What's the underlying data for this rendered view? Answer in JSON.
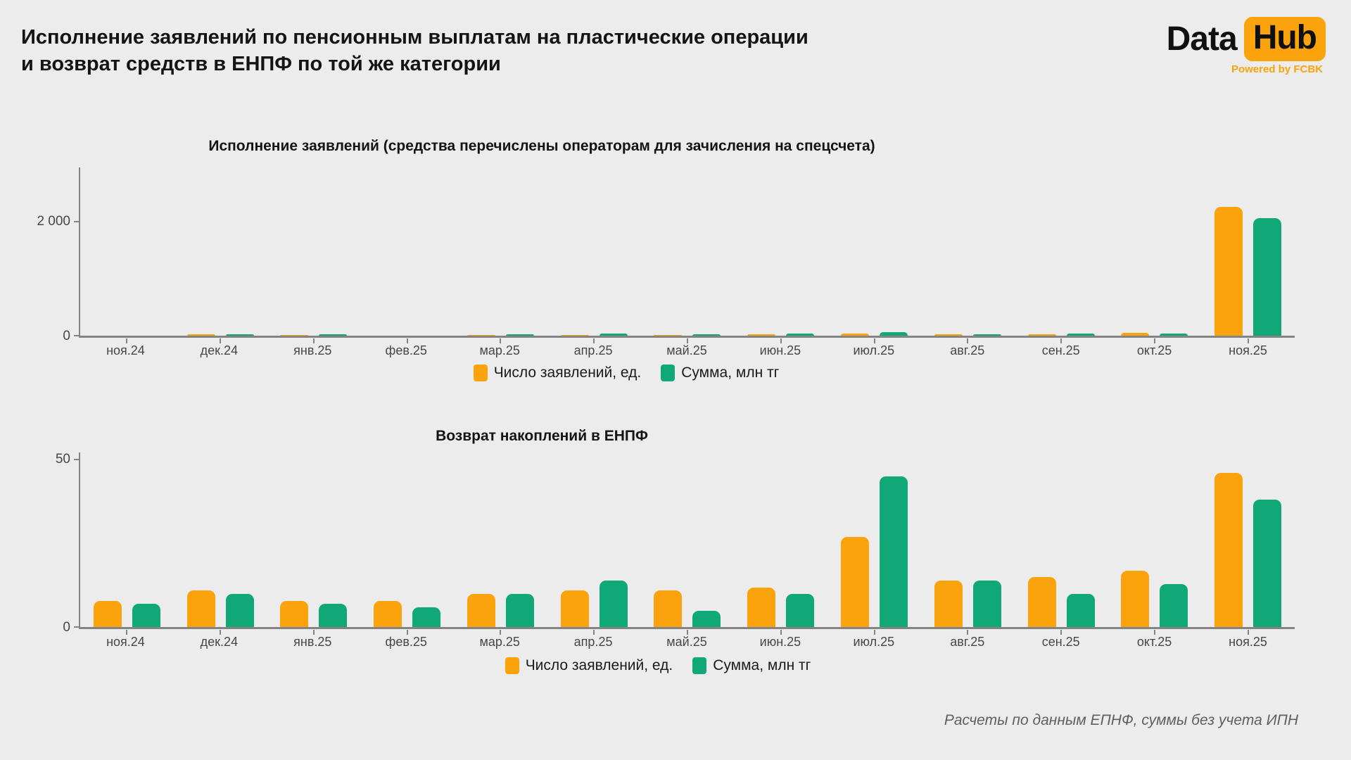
{
  "header": {
    "title_line1": "Исполнение заявлений по пенсионным выплатам на пластические операции",
    "title_line2": "и возврат средств в ЕНПФ по той же категории",
    "logo": {
      "part1": "Data",
      "part2": "Hub",
      "powered_by": "Powered by FCBK"
    }
  },
  "colors": {
    "accent_orange": "#FAA30C",
    "accent_green": "#11A877",
    "background": "#ECECEC",
    "axis": "#848484"
  },
  "chart_data": [
    {
      "type": "bar",
      "title": "Исполнение заявлений (средства перечислены операторам для зачисления на спецсчета)",
      "categories": [
        "ноя.24",
        "дек.24",
        "янв.25",
        "фев.25",
        "мар.25",
        "апр.25",
        "май.25",
        "июн.25",
        "июл.25",
        "авг.25",
        "сен.25",
        "окт.25",
        "ноя.25"
      ],
      "series": [
        {
          "name": "Число заявлений, ед.",
          "color": "#FAA30C",
          "values": [
            3,
            35,
            30,
            8,
            30,
            30,
            30,
            40,
            45,
            35,
            35,
            60,
            2260
          ]
        },
        {
          "name": "Сумма, млн тг",
          "color": "#11A877",
          "values": [
            3,
            35,
            35,
            8,
            40,
            55,
            35,
            55,
            75,
            40,
            45,
            55,
            2060
          ]
        }
      ],
      "xlabel": "",
      "ylabel": "",
      "ylim": [
        0,
        2940
      ],
      "yticks": [
        {
          "value": 0,
          "label": "0"
        },
        {
          "value": 2000,
          "label": "2 000"
        }
      ],
      "grid": false,
      "legend_position": "bottom"
    },
    {
      "type": "bar",
      "title": "Возврат накоплений в ЕНПФ",
      "categories": [
        "ноя.24",
        "дек.24",
        "янв.25",
        "фев.25",
        "мар.25",
        "апр.25",
        "май.25",
        "июн.25",
        "июл.25",
        "авг.25",
        "сен.25",
        "окт.25",
        "ноя.25"
      ],
      "series": [
        {
          "name": "Число заявлений, ед.",
          "color": "#FAA30C",
          "values": [
            8,
            11,
            8,
            8,
            10,
            11,
            11,
            12,
            27,
            14,
            15,
            17,
            46
          ]
        },
        {
          "name": "Сумма, млн тг",
          "color": "#11A877",
          "values": [
            7,
            10,
            7,
            6,
            10,
            14,
            5,
            10,
            45,
            14,
            10,
            13,
            38
          ]
        }
      ],
      "xlabel": "",
      "ylabel": "",
      "ylim": [
        0,
        52
      ],
      "yticks": [
        {
          "value": 0,
          "label": "0"
        },
        {
          "value": 50,
          "label": "50"
        }
      ],
      "grid": false,
      "legend_position": "bottom"
    }
  ],
  "footer": {
    "note": "Расчеты по данным ЕПНФ, суммы без учета ИПН"
  }
}
